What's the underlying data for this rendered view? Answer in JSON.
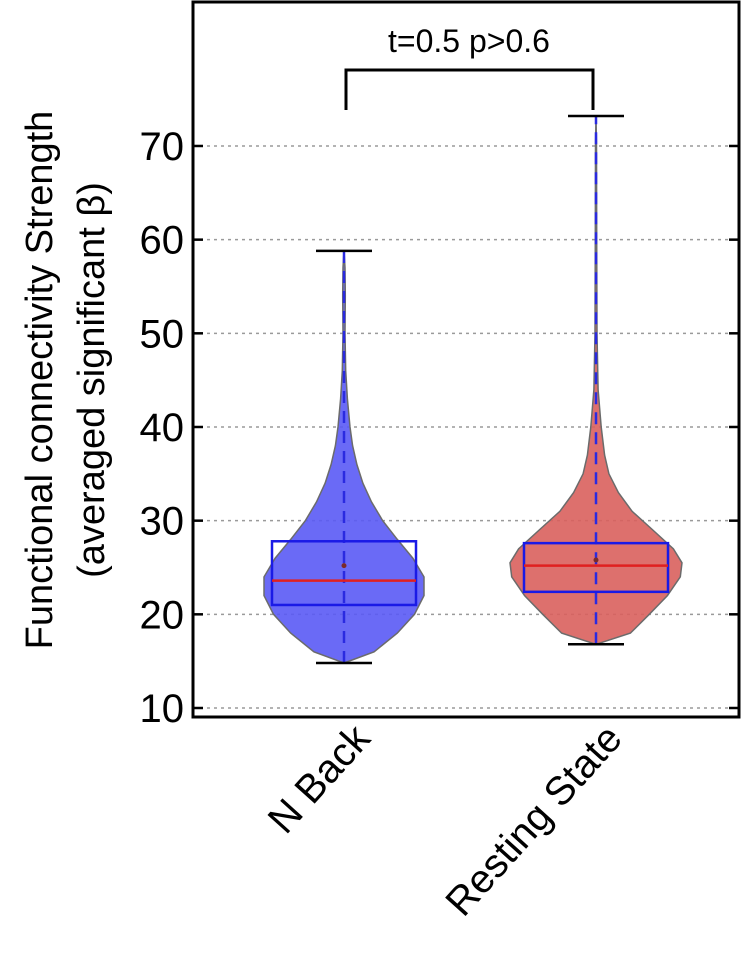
{
  "chart_data": {
    "type": "violin",
    "ylabel_line1": "Functional connectivity Strength",
    "ylabel_line2": "(averaged significant β)",
    "ylim": [
      9,
      78
    ],
    "yticks": [
      10,
      20,
      30,
      40,
      50,
      60,
      70
    ],
    "grid": true,
    "annotation": "t=0.5 p>0.6",
    "categories": [
      "N Back",
      "Resting State"
    ],
    "series": [
      {
        "name": "N Back",
        "fill_color": "#5a5af5",
        "min": 14.8,
        "q1": 21.0,
        "median": 23.6,
        "mean": 25.2,
        "q3": 27.8,
        "max": 58.8,
        "density": [
          [
            14.8,
            0.0
          ],
          [
            16,
            0.35
          ],
          [
            18,
            0.62
          ],
          [
            20,
            0.82
          ],
          [
            22,
            0.93
          ],
          [
            24,
            0.93
          ],
          [
            26,
            0.8
          ],
          [
            28,
            0.62
          ],
          [
            30,
            0.45
          ],
          [
            32,
            0.32
          ],
          [
            34,
            0.22
          ],
          [
            36,
            0.15
          ],
          [
            38,
            0.1
          ],
          [
            40,
            0.07
          ],
          [
            43,
            0.04
          ],
          [
            46,
            0.02
          ],
          [
            50,
            0.012
          ],
          [
            54,
            0.015
          ],
          [
            57,
            0.012
          ],
          [
            58.8,
            0.0
          ]
        ]
      },
      {
        "name": "Resting State",
        "fill_color": "#d9605d",
        "min": 16.8,
        "q1": 22.4,
        "median": 25.2,
        "mean": 25.8,
        "q3": 27.6,
        "max": 73.2,
        "density": [
          [
            16.8,
            0.0
          ],
          [
            18,
            0.4
          ],
          [
            20,
            0.62
          ],
          [
            22,
            0.83
          ],
          [
            24,
            0.98
          ],
          [
            25.5,
            1.0
          ],
          [
            27,
            0.9
          ],
          [
            29,
            0.66
          ],
          [
            31,
            0.42
          ],
          [
            33,
            0.26
          ],
          [
            35,
            0.15
          ],
          [
            37,
            0.1
          ],
          [
            40,
            0.06
          ],
          [
            44,
            0.025
          ],
          [
            50,
            0.012
          ],
          [
            60,
            0.008
          ],
          [
            70,
            0.006
          ],
          [
            73.2,
            0.0
          ]
        ]
      }
    ]
  }
}
